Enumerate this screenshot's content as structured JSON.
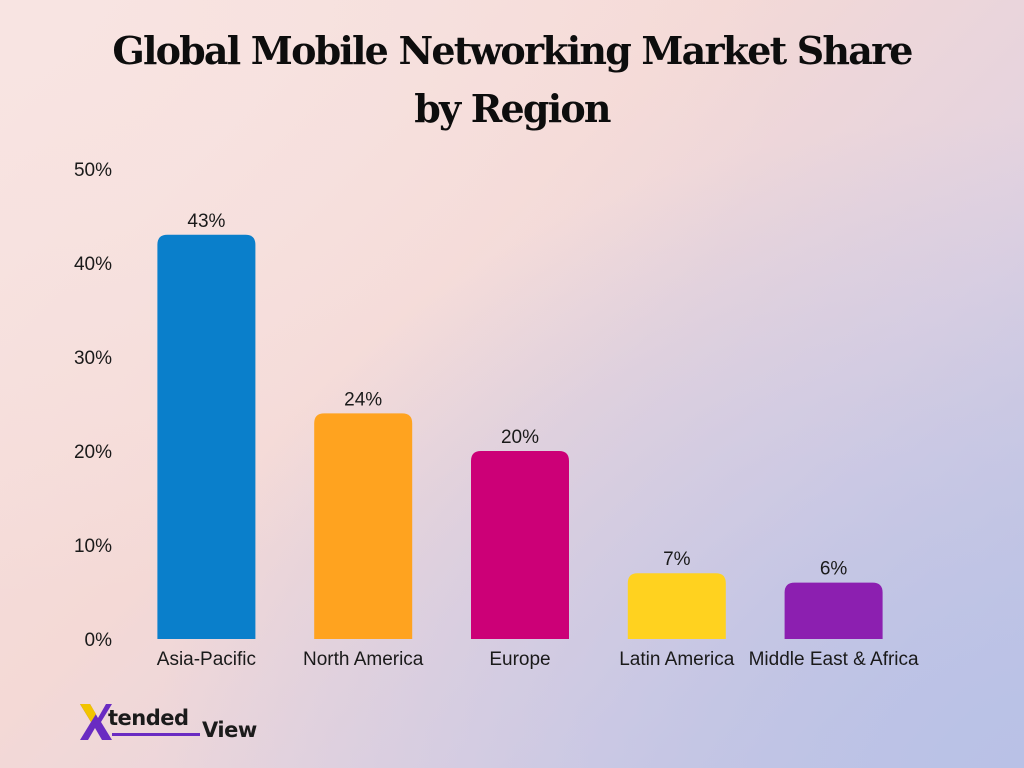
{
  "chart_data": {
    "type": "bar",
    "title": "Global Mobile Networking Market Share by Region",
    "categories": [
      "Asia-Pacific",
      "North America",
      "Europe",
      "Latin America",
      "Middle East & Africa"
    ],
    "values": [
      43,
      24,
      20,
      7,
      6
    ],
    "data_labels": [
      "43%",
      "24%",
      "20%",
      "7%",
      "6%"
    ],
    "colors": [
      "#0a7fcb",
      "#ffa31f",
      "#cc0077",
      "#ffd21f",
      "#8c1fb0"
    ],
    "ylim": [
      0,
      50
    ],
    "yticks": [
      0,
      10,
      20,
      30,
      40,
      50
    ],
    "ytick_labels": [
      "0%",
      "10%",
      "20%",
      "30%",
      "40%",
      "50%"
    ],
    "xlabel": "",
    "ylabel": "",
    "grid": false,
    "legend": "none"
  },
  "logo": {
    "part1": "tended",
    "part2": "View",
    "colors": [
      "#6a2bc2",
      "#f2c400"
    ]
  }
}
